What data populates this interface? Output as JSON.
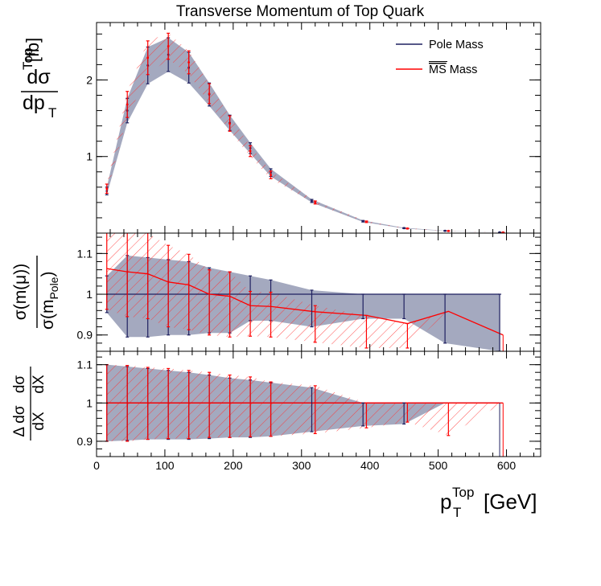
{
  "chart_data": {
    "type": "line",
    "title": "Transverse Momentum of Top Quark",
    "xlabel": {
      "main": "p",
      "sub": "T",
      "sup": "Top",
      "unit": "[GeV]"
    },
    "x_ticks": [
      0,
      100,
      200,
      300,
      400,
      500,
      600
    ],
    "xlim": [
      0,
      650
    ],
    "legend": {
      "placement": "top-right",
      "entries": [
        {
          "label": "Pole Mass",
          "color": "#1f2060"
        },
        {
          "label": "MS Mass",
          "overline": "MS",
          "rest": " Mass",
          "color": "#ff0000"
        }
      ]
    },
    "colors": {
      "pole": "#1f2060",
      "msbar": "#ff0000",
      "band": "#9aa0b8"
    },
    "panels": [
      {
        "id": "top",
        "ylabel": {
          "num": "dσ",
          "den_main": "dp",
          "den_sub": "T",
          "den_sup": "Top",
          "unit": "[fb]"
        },
        "ylim": [
          0.0,
          2.75
        ],
        "y_ticks": [
          1,
          2
        ],
        "pole": {
          "x": [
            15,
            45,
            75,
            105,
            135,
            165,
            195,
            225,
            255,
            315,
            390,
            450,
            510,
            590
          ],
          "y": [
            0.55,
            1.6,
            2.19,
            2.33,
            2.16,
            1.81,
            1.44,
            1.11,
            0.79,
            0.42,
            0.155,
            0.065,
            0.03,
            0.01
          ],
          "err_lo": [
            0.05,
            0.16,
            0.24,
            0.22,
            0.2,
            0.15,
            0.1,
            0.07,
            0.05,
            0.02,
            0.01,
            0.005,
            0.002,
            0.001
          ],
          "err_hi": [
            0.05,
            0.16,
            0.24,
            0.22,
            0.2,
            0.15,
            0.1,
            0.07,
            0.05,
            0.02,
            0.01,
            0.005,
            0.002,
            0.001
          ]
        },
        "msbar": {
          "x": [
            15,
            45,
            75,
            105,
            135,
            165,
            195,
            225,
            255,
            320,
            395,
            455,
            515,
            595
          ],
          "y": [
            0.58,
            1.68,
            2.29,
            2.44,
            2.23,
            1.82,
            1.43,
            1.07,
            0.76,
            0.4,
            0.148,
            0.06,
            0.028,
            0.009
          ],
          "err_lo": [
            0.06,
            0.17,
            0.22,
            0.17,
            0.15,
            0.13,
            0.1,
            0.07,
            0.05,
            0.02,
            0.01,
            0.005,
            0.002,
            0.001
          ],
          "err_hi": [
            0.06,
            0.17,
            0.22,
            0.17,
            0.15,
            0.13,
            0.1,
            0.07,
            0.05,
            0.02,
            0.01,
            0.005,
            0.002,
            0.001
          ]
        }
      },
      {
        "id": "ratio",
        "ylabel": {
          "num": "σ(m(μ))",
          "den_main": "σ(m",
          "den_sub": "Pole",
          "den_close": ")"
        },
        "ylim": [
          0.86,
          1.15
        ],
        "y_ticks": [
          0.9,
          1,
          1.1
        ],
        "pole": {
          "x": [
            15,
            45,
            75,
            105,
            135,
            165,
            195,
            225,
            255,
            315,
            390,
            450,
            510,
            590
          ],
          "y": [
            1,
            1,
            1,
            1,
            1,
            1,
            1,
            1,
            1,
            1,
            1,
            1,
            1,
            1
          ],
          "err_lo": [
            0.045,
            0.105,
            0.105,
            0.1,
            0.1,
            0.095,
            0.095,
            0.065,
            0.065,
            0.08,
            0.06,
            0.06,
            0.12,
            0.14
          ],
          "err_hi": [
            0.045,
            0.095,
            0.09,
            0.085,
            0.08,
            0.065,
            0.055,
            0.045,
            0.035,
            0.01,
            0.0,
            0.0,
            0.0,
            0.0
          ]
        },
        "msbar": {
          "x": [
            15,
            45,
            75,
            105,
            135,
            165,
            195,
            225,
            255,
            320,
            395,
            455,
            515,
            595
          ],
          "y": [
            1.063,
            1.055,
            1.05,
            1.03,
            1.023,
            1.0,
            0.995,
            0.972,
            0.97,
            0.957,
            0.948,
            0.928,
            0.958,
            0.9
          ],
          "err_lo": [
            0.1,
            0.11,
            0.11,
            0.11,
            0.11,
            0.1,
            0.1,
            0.075,
            0.075,
            0.075,
            0.08,
            0.06,
            0.0,
            0.0
          ],
          "err_hi": [
            0.1,
            0.1,
            0.1,
            0.09,
            0.075,
            0.06,
            0.06,
            0.035,
            0.035,
            0.015,
            0.0,
            0.0,
            0.0,
            0.0
          ]
        }
      },
      {
        "id": "unc",
        "ylabel": {
          "top_a": "Δ dσ",
          "top_b": "dσ",
          "bot_a": "dX",
          "bot_b": "dX"
        },
        "ylim": [
          0.86,
          1.135
        ],
        "y_ticks": [
          0.9,
          1,
          1.1
        ],
        "pole": {
          "x": [
            15,
            45,
            75,
            105,
            135,
            165,
            195,
            225,
            255,
            315,
            390,
            450,
            510,
            590
          ],
          "y": [
            1,
            1,
            1,
            1,
            1,
            1,
            1,
            1,
            1,
            1,
            1,
            1,
            1,
            1
          ],
          "err_lo": [
            0.1,
            0.098,
            0.095,
            0.095,
            0.095,
            0.093,
            0.09,
            0.09,
            0.087,
            0.075,
            0.06,
            0.055,
            0.0,
            0.0
          ],
          "err_hi": [
            0.1,
            0.095,
            0.09,
            0.085,
            0.08,
            0.073,
            0.065,
            0.06,
            0.053,
            0.04,
            0.0,
            0.0,
            0.0,
            0.0
          ]
        },
        "msbar": {
          "x": [
            15,
            45,
            75,
            105,
            135,
            165,
            195,
            225,
            255,
            320,
            395,
            455,
            515,
            595
          ],
          "y": [
            1,
            1,
            1,
            1,
            1,
            1,
            1,
            1,
            1,
            1,
            1,
            1,
            1,
            1
          ],
          "err_lo": [
            0.1,
            0.1,
            0.095,
            0.093,
            0.093,
            0.09,
            0.09,
            0.088,
            0.087,
            0.08,
            0.065,
            0.05,
            0.085,
            0.0
          ],
          "err_hi": [
            0.1,
            0.098,
            0.093,
            0.09,
            0.085,
            0.08,
            0.073,
            0.068,
            0.055,
            0.045,
            0.0,
            0.0,
            0.0,
            0.0
          ]
        }
      }
    ]
  }
}
